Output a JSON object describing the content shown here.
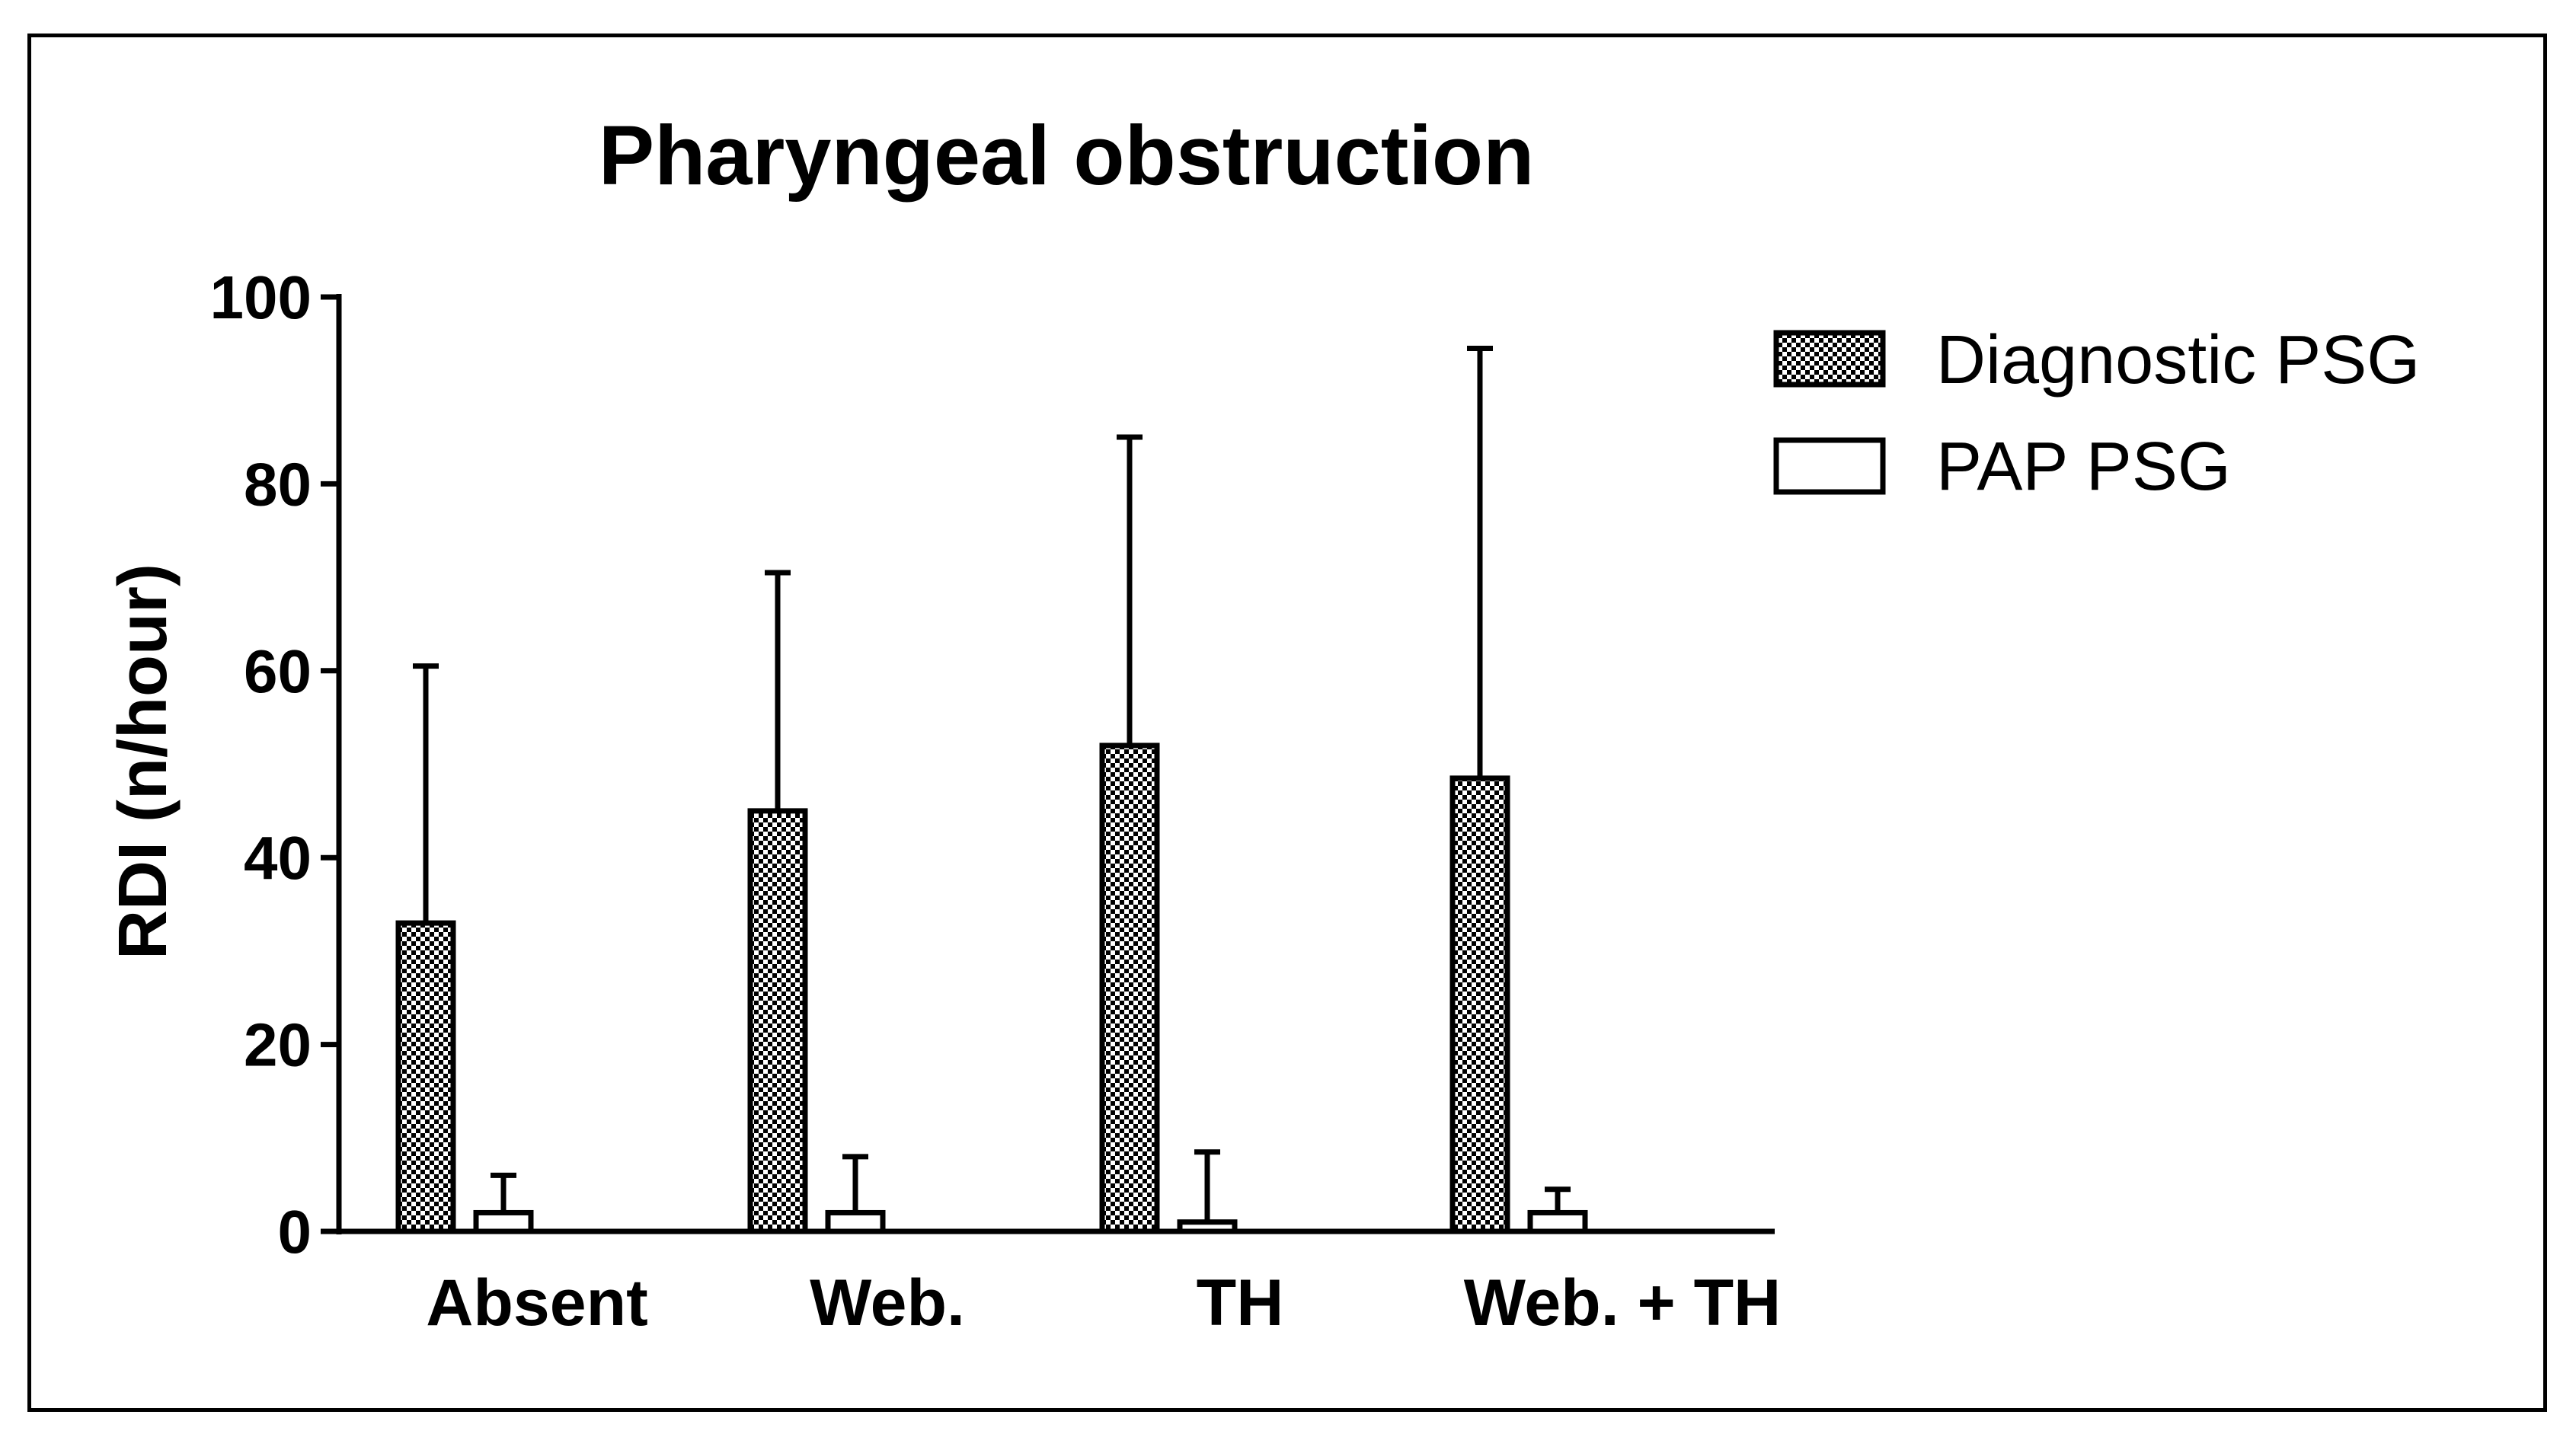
{
  "chart_data": {
    "type": "bar",
    "title": "Pharyngeal obstruction",
    "xlabel": "",
    "ylabel": "RDI (n/hour)",
    "ylim": [
      0,
      100
    ],
    "yticks": [
      "0",
      "20",
      "40",
      "60",
      "80",
      "100"
    ],
    "categories": [
      "Absent",
      "Web.",
      "TH",
      "Web. + TH"
    ],
    "series": [
      {
        "name": "Diagnostic PSG",
        "pattern": "checkered",
        "values": [
          33,
          45,
          52,
          48.5
        ],
        "error_upper": [
          60.5,
          70.5,
          85,
          94.5
        ]
      },
      {
        "name": "PAP PSG",
        "pattern": "open",
        "values": [
          2,
          2,
          1,
          2
        ],
        "error_upper": [
          6,
          8,
          8.5,
          4.5
        ]
      }
    ],
    "legend_position": "top-right",
    "colors": {
      "ink": "#000000",
      "background": "#ffffff"
    }
  }
}
